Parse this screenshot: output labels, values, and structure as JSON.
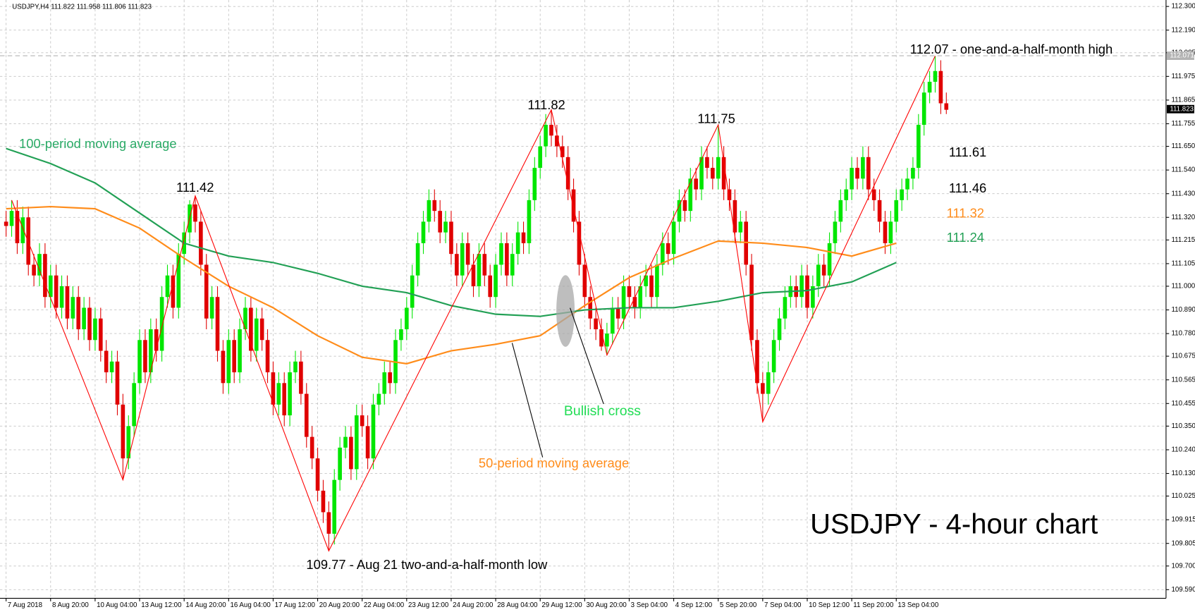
{
  "chart_data": {
    "type": "candlestick",
    "header": "USDJPY,H4  111.822 111.958 111.806 111.823",
    "bull_color": "#00e600",
    "bear_color": "#e00000",
    "zigzag_color": "#ff0000",
    "grid": true,
    "ylim": [
      109.55,
      112.33
    ],
    "yticks": [
      {
        "value": 112.3,
        "label": "112.300"
      },
      {
        "value": 112.19,
        "label": "112.190"
      },
      112.085,
      111.975,
      111.865,
      111.755,
      {
        "value": 111.65,
        "label": "111.650"
      },
      {
        "value": 111.54,
        "label": "111.540"
      },
      {
        "value": 111.43,
        "label": "111.430"
      },
      {
        "value": 111.32,
        "label": "111.320"
      },
      111.215,
      111.105,
      {
        "value": 111.0,
        "label": "111.000"
      },
      {
        "value": 110.89,
        "label": "110.890"
      },
      {
        "value": 110.78,
        "label": "110.780"
      },
      110.675,
      110.565,
      110.455,
      {
        "value": 110.35,
        "label": "110.350"
      },
      {
        "value": 110.24,
        "label": "110.240"
      },
      {
        "value": 110.13,
        "label": "110.130"
      },
      110.025,
      109.915,
      109.805,
      {
        "value": 109.7,
        "label": "109.700"
      },
      {
        "value": 109.59,
        "label": "109.590"
      }
    ],
    "xticks": [
      "7 Aug 2018",
      "8 Aug 20:00",
      "10 Aug 04:00",
      "13 Aug 12:00",
      "14 Aug 20:00",
      "16 Aug 04:00",
      "17 Aug 12:00",
      "20 Aug 20:00",
      "22 Aug 04:00",
      "23 Aug 12:00",
      "24 Aug 20:00",
      "28 Aug 04:00",
      "29 Aug 12:00",
      "30 Aug 20:00",
      "3 Sep 04:00",
      "4 Sep 12:00",
      "5 Sep 20:00",
      "7 Sep 04:00",
      "10 Sep 12:00",
      "11 Sep 20:00",
      "13 Sep 04:00"
    ],
    "candles": {
      "open": [
        111.3,
        111.28,
        111.35,
        111.2,
        111.32,
        111.1,
        111.05,
        111.15,
        110.95,
        111.05,
        110.9,
        111.0,
        110.85,
        110.95,
        110.8,
        110.9,
        110.75,
        110.85,
        110.7,
        110.6,
        110.65,
        110.45,
        110.2,
        110.35,
        110.55,
        110.75,
        110.6,
        110.8,
        110.7,
        110.95,
        111.05,
        110.9,
        111.15,
        111.25,
        111.38,
        111.3,
        111.1,
        110.85,
        110.95,
        110.7,
        110.55,
        110.75,
        110.6,
        110.8,
        110.9,
        110.7,
        110.85,
        110.75,
        110.6,
        110.45,
        110.55,
        110.4,
        110.6,
        110.65,
        110.5,
        110.3,
        110.2,
        110.05,
        109.95,
        109.85,
        110.1,
        110.25,
        110.3,
        110.15,
        110.4,
        110.35,
        110.2,
        110.45,
        110.5,
        110.6,
        110.55,
        110.75,
        110.8,
        110.9,
        111.05,
        111.2,
        111.3,
        111.4,
        111.35,
        111.25,
        111.3,
        111.15,
        111.05,
        111.2,
        111.1,
        111.0,
        111.15,
        111.05,
        110.95,
        111.1,
        111.2,
        111.05,
        111.15,
        111.25,
        111.2,
        111.4,
        111.55,
        111.65,
        111.75,
        111.7,
        111.65,
        111.6,
        111.45,
        111.3,
        111.1,
        110.95,
        110.85,
        110.8,
        110.72,
        110.78,
        110.9,
        110.85,
        111.0,
        110.95,
        110.9,
        111.0,
        111.05,
        110.95,
        111.1,
        111.2,
        111.15,
        111.3,
        111.4,
        111.35,
        111.5,
        111.45,
        111.6,
        111.55,
        111.5,
        111.6,
        111.45,
        111.4,
        111.25,
        111.3,
        111.1,
        110.75,
        110.55,
        110.5,
        110.6,
        110.75,
        110.85,
        110.95,
        111.0,
        110.95,
        111.05,
        110.9,
        111.0,
        111.1,
        111.05,
        111.2,
        111.3,
        111.4,
        111.45,
        111.55,
        111.5,
        111.6,
        111.45,
        111.4,
        111.3,
        111.2,
        111.3,
        111.4,
        111.45,
        111.5,
        111.55,
        111.75,
        111.9,
        111.95,
        112.0,
        111.85
      ],
      "high": [
        111.35,
        111.4,
        111.4,
        111.37,
        111.37,
        111.15,
        111.2,
        111.2,
        111.1,
        111.1,
        111.05,
        111.05,
        111.0,
        111.0,
        110.95,
        110.95,
        110.9,
        110.9,
        110.75,
        110.7,
        110.7,
        110.5,
        110.4,
        110.6,
        110.8,
        110.8,
        110.85,
        110.85,
        111.0,
        111.1,
        111.1,
        111.2,
        111.3,
        111.4,
        111.42,
        111.35,
        111.15,
        111.0,
        111.0,
        110.75,
        110.8,
        110.8,
        110.85,
        110.95,
        110.95,
        110.9,
        110.9,
        110.8,
        110.65,
        110.6,
        110.6,
        110.65,
        110.7,
        110.7,
        110.55,
        110.35,
        110.25,
        110.1,
        110.0,
        110.15,
        110.3,
        110.35,
        110.35,
        110.45,
        110.45,
        110.4,
        110.5,
        110.55,
        110.65,
        110.65,
        110.8,
        110.85,
        110.95,
        111.1,
        111.25,
        111.35,
        111.45,
        111.45,
        111.4,
        111.35,
        111.35,
        111.2,
        111.25,
        111.25,
        111.15,
        111.2,
        111.2,
        111.1,
        111.15,
        111.25,
        111.25,
        111.2,
        111.3,
        111.3,
        111.45,
        111.6,
        111.7,
        111.8,
        111.82,
        111.75,
        111.7,
        111.65,
        111.5,
        111.35,
        111.15,
        111.0,
        110.9,
        110.85,
        110.83,
        110.95,
        110.95,
        111.05,
        111.05,
        111.0,
        111.05,
        111.1,
        111.1,
        111.15,
        111.25,
        111.25,
        111.35,
        111.45,
        111.45,
        111.55,
        111.55,
        111.65,
        111.65,
        111.6,
        111.75,
        111.65,
        111.5,
        111.45,
        111.35,
        111.35,
        111.15,
        110.8,
        110.6,
        110.65,
        110.8,
        110.9,
        111.0,
        111.05,
        111.05,
        111.1,
        111.1,
        111.05,
        111.15,
        111.15,
        111.25,
        111.35,
        111.45,
        111.5,
        111.6,
        111.6,
        111.65,
        111.65,
        111.5,
        111.45,
        111.35,
        111.35,
        111.45,
        111.5,
        111.55,
        111.6,
        111.8,
        111.95,
        112.0,
        112.07,
        112.05,
        111.9
      ],
      "low": [
        111.23,
        111.23,
        111.15,
        111.15,
        111.05,
        111.0,
        111.0,
        110.9,
        110.9,
        110.85,
        110.85,
        110.8,
        110.8,
        110.75,
        110.75,
        110.7,
        110.7,
        110.65,
        110.55,
        110.55,
        110.4,
        110.1,
        110.15,
        110.3,
        110.5,
        110.55,
        110.55,
        110.65,
        110.65,
        110.9,
        110.85,
        110.85,
        111.1,
        111.2,
        111.25,
        111.05,
        110.8,
        110.8,
        110.65,
        110.5,
        110.5,
        110.55,
        110.55,
        110.75,
        110.65,
        110.65,
        110.7,
        110.55,
        110.4,
        110.4,
        110.35,
        110.35,
        110.55,
        110.45,
        110.25,
        110.15,
        110.0,
        109.9,
        109.77,
        109.8,
        110.05,
        110.2,
        110.1,
        110.1,
        110.3,
        110.15,
        110.15,
        110.4,
        110.45,
        110.5,
        110.5,
        110.7,
        110.75,
        110.85,
        111.0,
        111.15,
        111.25,
        111.3,
        111.2,
        111.2,
        111.1,
        111.0,
        111.0,
        111.05,
        110.95,
        110.95,
        111.0,
        110.9,
        110.9,
        111.05,
        111.0,
        111.0,
        111.1,
        111.15,
        111.15,
        111.35,
        111.5,
        111.6,
        111.65,
        111.6,
        111.55,
        111.4,
        111.25,
        111.05,
        110.9,
        110.8,
        110.75,
        110.7,
        110.68,
        110.73,
        110.8,
        110.8,
        110.9,
        110.85,
        110.85,
        110.95,
        110.9,
        110.9,
        111.05,
        111.1,
        111.1,
        111.25,
        111.3,
        111.3,
        111.4,
        111.4,
        111.5,
        111.45,
        111.45,
        111.4,
        111.35,
        111.2,
        111.2,
        111.05,
        110.7,
        110.5,
        110.37,
        110.45,
        110.55,
        110.7,
        110.8,
        110.9,
        110.9,
        110.9,
        110.85,
        110.85,
        110.95,
        111.0,
        111.0,
        111.15,
        111.25,
        111.35,
        111.4,
        111.45,
        111.45,
        111.4,
        111.35,
        111.25,
        111.15,
        111.15,
        111.25,
        111.35,
        111.4,
        111.45,
        111.5,
        111.7,
        111.85,
        111.9,
        111.8,
        111.8
      ],
      "close": [
        111.28,
        111.35,
        111.2,
        111.32,
        111.1,
        111.05,
        111.15,
        110.95,
        111.05,
        110.9,
        111.0,
        110.85,
        110.95,
        110.8,
        110.9,
        110.75,
        110.85,
        110.7,
        110.6,
        110.65,
        110.45,
        110.2,
        110.35,
        110.55,
        110.75,
        110.6,
        110.8,
        110.7,
        110.95,
        111.05,
        110.9,
        111.15,
        111.25,
        111.38,
        111.3,
        111.1,
        110.85,
        110.95,
        110.7,
        110.55,
        110.75,
        110.6,
        110.8,
        110.9,
        110.7,
        110.85,
        110.75,
        110.6,
        110.45,
        110.55,
        110.4,
        110.6,
        110.65,
        110.5,
        110.3,
        110.2,
        110.05,
        109.95,
        109.85,
        110.1,
        110.25,
        110.3,
        110.15,
        110.4,
        110.35,
        110.2,
        110.45,
        110.5,
        110.6,
        110.55,
        110.75,
        110.8,
        110.9,
        111.05,
        111.2,
        111.3,
        111.4,
        111.35,
        111.25,
        111.3,
        111.15,
        111.05,
        111.2,
        111.1,
        111.0,
        111.15,
        111.05,
        110.95,
        111.1,
        111.2,
        111.05,
        111.15,
        111.25,
        111.2,
        111.4,
        111.55,
        111.65,
        111.75,
        111.7,
        111.65,
        111.6,
        111.45,
        111.3,
        111.1,
        110.95,
        110.85,
        110.8,
        110.72,
        110.78,
        110.9,
        110.85,
        111.0,
        110.95,
        110.9,
        111.0,
        111.05,
        110.95,
        111.1,
        111.2,
        111.15,
        111.3,
        111.4,
        111.35,
        111.5,
        111.45,
        111.6,
        111.55,
        111.5,
        111.6,
        111.45,
        111.4,
        111.25,
        111.3,
        111.1,
        110.75,
        110.55,
        110.5,
        110.6,
        110.75,
        110.85,
        110.95,
        111.0,
        110.95,
        111.05,
        110.9,
        111.0,
        111.1,
        111.05,
        111.2,
        111.3,
        111.4,
        111.45,
        111.55,
        111.5,
        111.6,
        111.45,
        111.4,
        111.3,
        111.2,
        111.3,
        111.4,
        111.45,
        111.5,
        111.55,
        111.75,
        111.9,
        111.95,
        112.0,
        111.85,
        111.82
      ]
    },
    "series": [
      {
        "color": "#ff8c1a",
        "values": [
          111.36,
          111.37,
          111.36,
          111.27,
          111.13,
          111.0,
          110.9,
          110.77,
          110.67,
          110.64,
          110.7,
          110.73,
          110.77,
          110.91,
          111.04,
          111.13,
          111.21,
          111.2,
          111.18,
          111.14,
          111.2
        ]
      },
      {
        "color": "#22a055",
        "values": [
          111.64,
          111.57,
          111.48,
          111.34,
          111.2,
          111.14,
          111.11,
          111.06,
          111.0,
          110.97,
          110.91,
          110.87,
          110.86,
          110.89,
          110.9,
          110.9,
          110.93,
          110.97,
          110.98,
          111.02,
          111.11
        ]
      }
    ],
    "price_lines": [
      {
        "value": 112.071,
        "color": "#b4b4b4",
        "dashed": true
      },
      {
        "value": 111.823,
        "color": "#000000",
        "dashed": false
      }
    ],
    "annotations": [
      {
        "text": "111.42",
        "color": "#000000"
      },
      {
        "text": "111.82",
        "color": "#000000"
      },
      {
        "text": "111.75",
        "color": "#000000"
      },
      {
        "text": "112.07 - one-and-a-half-month high",
        "color": "#000000"
      },
      {
        "text": "109.77 - Aug 21 two-and-a-half-month low",
        "color": "#000000"
      },
      {
        "text": "111.61",
        "color": "#000000"
      },
      {
        "text": "111.46",
        "color": "#000000"
      },
      {
        "text": "111.32",
        "color": "#ff8c1a"
      },
      {
        "text": "111.24",
        "color": "#22a055"
      },
      {
        "text": "100-period moving average",
        "color": "#2aaa66"
      },
      {
        "text": "50-period moving average",
        "color": "#ff8c1a"
      },
      {
        "text": "Bullish cross",
        "color": "#22dd55"
      },
      {
        "text": "USDJPY - 4-hour chart",
        "color": "#000000"
      }
    ]
  }
}
